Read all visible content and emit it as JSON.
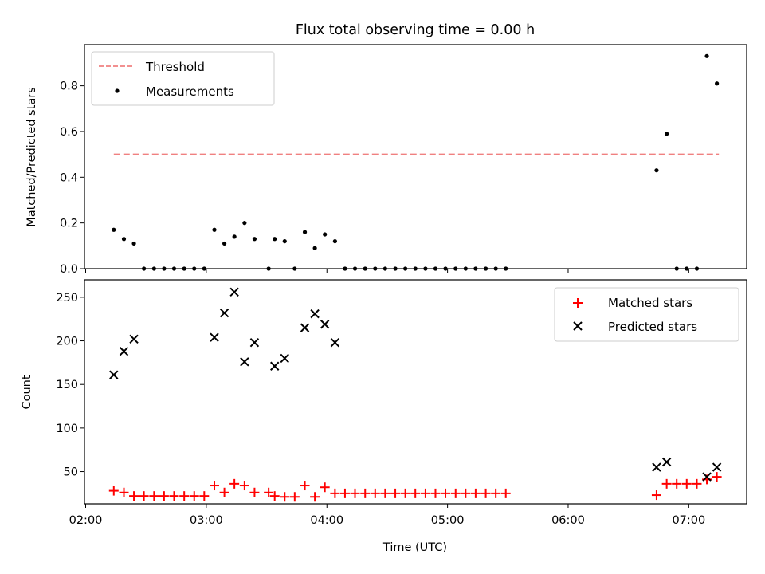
{
  "chart_data": [
    {
      "type": "scatter",
      "title": "Flux total observing time = 0.00 h",
      "xlabel": "",
      "ylabel": "Matched/Predicted stars",
      "xlim_hours": [
        1.99,
        7.48
      ],
      "ylim": [
        0,
        0.98
      ],
      "y_ticks": [
        0.0,
        0.2,
        0.4,
        0.6,
        0.8
      ],
      "y_tick_labels": [
        "0.0",
        "0.2",
        "0.4",
        "0.6",
        "0.8"
      ],
      "x_ticks_hours": [
        2,
        3,
        4,
        5,
        6,
        7
      ],
      "legend_position": "top-left",
      "legend": [
        "Threshold",
        "Measurements"
      ],
      "threshold": {
        "name": "Threshold",
        "value": 0.5,
        "x_range_hours": [
          2.233,
          7.25
        ],
        "color": "#f08080"
      },
      "series": [
        {
          "name": "Measurements",
          "color": "#000000",
          "points": [
            [
              2.233,
              0.17
            ],
            [
              2.317,
              0.13
            ],
            [
              2.4,
              0.11
            ],
            [
              2.483,
              0.0
            ],
            [
              2.567,
              0.0
            ],
            [
              2.65,
              0.0
            ],
            [
              2.733,
              0.0
            ],
            [
              2.817,
              0.0
            ],
            [
              2.9,
              0.0
            ],
            [
              2.983,
              0.0
            ],
            [
              3.067,
              0.17
            ],
            [
              3.15,
              0.11
            ],
            [
              3.233,
              0.14
            ],
            [
              3.317,
              0.2
            ],
            [
              3.4,
              0.13
            ],
            [
              3.517,
              0.0
            ],
            [
              3.567,
              0.13
            ],
            [
              3.65,
              0.12
            ],
            [
              3.733,
              0.0
            ],
            [
              3.817,
              0.16
            ],
            [
              3.9,
              0.09
            ],
            [
              3.983,
              0.15
            ],
            [
              4.067,
              0.12
            ],
            [
              4.15,
              0.0
            ],
            [
              4.233,
              0.0
            ],
            [
              4.317,
              0.0
            ],
            [
              4.4,
              0.0
            ],
            [
              4.483,
              0.0
            ],
            [
              4.567,
              0.0
            ],
            [
              4.65,
              0.0
            ],
            [
              4.733,
              0.0
            ],
            [
              4.817,
              0.0
            ],
            [
              4.9,
              0.0
            ],
            [
              4.983,
              0.0
            ],
            [
              5.067,
              0.0
            ],
            [
              5.15,
              0.0
            ],
            [
              5.233,
              0.0
            ],
            [
              5.317,
              0.0
            ],
            [
              5.4,
              0.0
            ],
            [
              5.483,
              0.0
            ],
            [
              6.733,
              0.43
            ],
            [
              6.817,
              0.59
            ],
            [
              6.9,
              0.0
            ],
            [
              6.983,
              0.0
            ],
            [
              7.067,
              0.0
            ],
            [
              7.15,
              0.93
            ],
            [
              7.233,
              0.81
            ]
          ]
        }
      ]
    },
    {
      "type": "scatter",
      "title": "",
      "xlabel": "Time (UTC)",
      "ylabel": "Count",
      "xlim_hours": [
        1.99,
        7.48
      ],
      "ylim": [
        13,
        270
      ],
      "y_ticks": [
        50,
        100,
        150,
        200,
        250
      ],
      "y_tick_labels": [
        "50",
        "100",
        "150",
        "200",
        "250"
      ],
      "x_ticks_hours": [
        2,
        3,
        4,
        5,
        6,
        7
      ],
      "x_tick_labels": [
        "02:00",
        "03:00",
        "04:00",
        "05:00",
        "06:00",
        "07:00"
      ],
      "legend_position": "top-right",
      "legend": [
        "Matched stars",
        "Predicted stars"
      ],
      "series": [
        {
          "name": "Matched stars",
          "marker": "+",
          "color": "#ff0000",
          "points": [
            [
              2.233,
              28
            ],
            [
              2.317,
              26
            ],
            [
              2.4,
              22
            ],
            [
              2.483,
              22
            ],
            [
              2.567,
              22
            ],
            [
              2.65,
              22
            ],
            [
              2.733,
              22
            ],
            [
              2.817,
              22
            ],
            [
              2.9,
              22
            ],
            [
              2.983,
              22
            ],
            [
              3.067,
              34
            ],
            [
              3.15,
              26
            ],
            [
              3.233,
              36
            ],
            [
              3.317,
              34
            ],
            [
              3.4,
              26
            ],
            [
              3.517,
              26
            ],
            [
              3.567,
              22
            ],
            [
              3.65,
              21
            ],
            [
              3.733,
              21
            ],
            [
              3.817,
              34
            ],
            [
              3.9,
              21
            ],
            [
              3.983,
              32
            ],
            [
              4.067,
              25
            ],
            [
              4.15,
              25
            ],
            [
              4.233,
              25
            ],
            [
              4.317,
              25
            ],
            [
              4.4,
              25
            ],
            [
              4.483,
              25
            ],
            [
              4.567,
              25
            ],
            [
              4.65,
              25
            ],
            [
              4.733,
              25
            ],
            [
              4.817,
              25
            ],
            [
              4.9,
              25
            ],
            [
              4.983,
              25
            ],
            [
              5.067,
              25
            ],
            [
              5.15,
              25
            ],
            [
              5.233,
              25
            ],
            [
              5.317,
              25
            ],
            [
              5.4,
              25
            ],
            [
              5.483,
              25
            ],
            [
              6.733,
              23
            ],
            [
              6.817,
              36
            ],
            [
              6.9,
              36
            ],
            [
              6.983,
              36
            ],
            [
              7.067,
              36
            ],
            [
              7.15,
              41
            ],
            [
              7.233,
              44
            ]
          ]
        },
        {
          "name": "Predicted stars",
          "marker": "x",
          "color": "#000000",
          "points": [
            [
              2.233,
              161
            ],
            [
              2.317,
              188
            ],
            [
              2.4,
              202
            ],
            [
              3.067,
              204
            ],
            [
              3.15,
              232
            ],
            [
              3.233,
              256
            ],
            [
              3.317,
              176
            ],
            [
              3.4,
              198
            ],
            [
              3.567,
              171
            ],
            [
              3.65,
              180
            ],
            [
              3.817,
              215
            ],
            [
              3.9,
              231
            ],
            [
              3.983,
              219
            ],
            [
              4.067,
              198
            ],
            [
              6.733,
              55
            ],
            [
              6.817,
              61
            ],
            [
              7.15,
              44
            ],
            [
              7.233,
              55
            ]
          ]
        }
      ]
    }
  ]
}
